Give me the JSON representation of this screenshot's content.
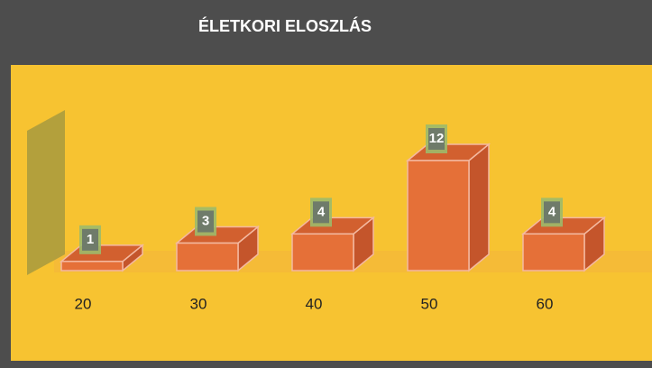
{
  "chart_data": {
    "type": "bar3d",
    "title": "ÉLETKORI ELOSZLÁS",
    "categories": [
      "20",
      "30",
      "40",
      "50",
      "60"
    ],
    "values": [
      1,
      3,
      4,
      12,
      4
    ],
    "color": "#e57038"
  }
}
